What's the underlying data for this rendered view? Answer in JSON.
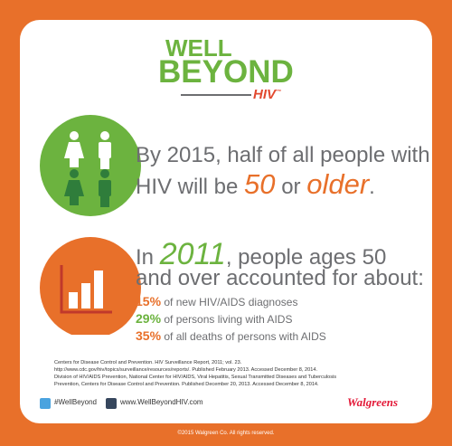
{
  "logo": {
    "well": "WELL",
    "beyond": "BEYOND",
    "hiv": "HIV",
    "tm": "™"
  },
  "statement1": {
    "line1": "By 2015, half of all people with",
    "line2_start": "HIV will be",
    "age": "50",
    "or": "or",
    "older": "older",
    "end": "."
  },
  "statement2": {
    "in": "In",
    "year": "2011",
    "line1_rest": ", people ages 50",
    "line2": "and over accounted for about:"
  },
  "stats": [
    {
      "value": "15%",
      "text": "of new HIV/AIDS diagnoses"
    },
    {
      "value": "29%",
      "text": "of persons living with AIDS"
    },
    {
      "value": "35%",
      "text": "of all deaths of persons with AIDS"
    }
  ],
  "references": [
    "Centers for Disease Control and Prevention. HIV Surveillance Report, 2011; vol. 23.",
    "http://www.cdc.gov/hiv/topics/surveillance/resources/reports/. Published February 2013. Accessed December 8, 2014.",
    "Division of HIV/AIDS Prevention, National Center for HIV/AIDS, Viral Hepatitis, Sexual Transmitted Diseases and Tuberculosis",
    "Prevention, Centers for Disease Control and Prevention. Published December 20, 2013. Accessed December 8, 2014."
  ],
  "footer": {
    "twitter": "#WellBeyond",
    "website": "www.WellBeyondHIV.com",
    "brand": "Walgreens",
    "copyright": "©2015 Walgreen Co. All rights reserved."
  }
}
